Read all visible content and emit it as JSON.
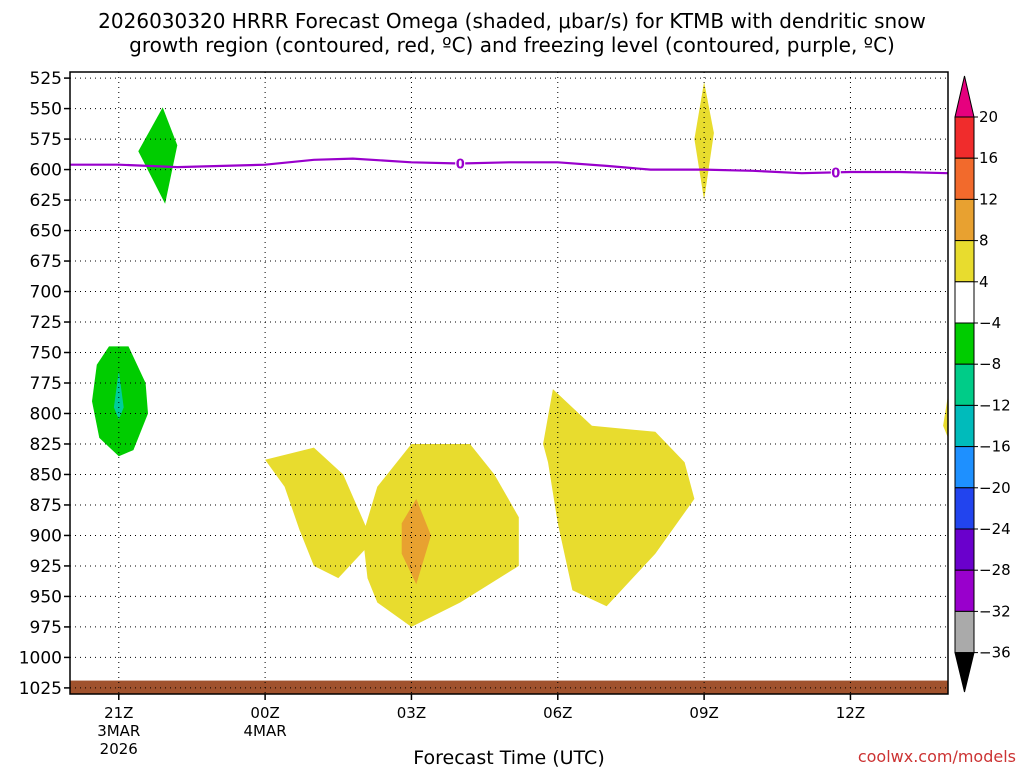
{
  "title_line1": "2026030320 HRRR Forecast Omega (shaded, μbar/s) for KTMB with dendritic snow",
  "title_line2": "growth region (contoured, red, ºC) and freezing level (contoured, purple, ºC)",
  "credit": "coolwx.com/models",
  "chart_data": {
    "type": "area",
    "xlabel": "Forecast Time (UTC)",
    "ylabel": "",
    "x_range_hours": [
      -1,
      17
    ],
    "y_range_hPa": [
      520,
      1030
    ],
    "y_ticks": [
      525,
      550,
      575,
      600,
      625,
      650,
      675,
      700,
      725,
      750,
      775,
      800,
      825,
      850,
      875,
      900,
      925,
      950,
      975,
      1000,
      1025
    ],
    "x_ticks": [
      {
        "hour": 0,
        "label": "21Z",
        "sub1": "3MAR",
        "sub2": "2026"
      },
      {
        "hour": 3,
        "label": "00Z",
        "sub1": "4MAR",
        "sub2": ""
      },
      {
        "hour": 6,
        "label": "03Z",
        "sub1": "",
        "sub2": ""
      },
      {
        "hour": 9,
        "label": "06Z",
        "sub1": "",
        "sub2": ""
      },
      {
        "hour": 12,
        "label": "09Z",
        "sub1": "",
        "sub2": ""
      },
      {
        "hour": 15,
        "label": "12Z",
        "sub1": "",
        "sub2": ""
      }
    ],
    "grid": true,
    "freezing_level": {
      "label": "0",
      "color": "#9900cc",
      "points": [
        [
          -1,
          596
        ],
        [
          0,
          596
        ],
        [
          1.2,
          598
        ],
        [
          3,
          596
        ],
        [
          4,
          592
        ],
        [
          4.8,
          591
        ],
        [
          6,
          594
        ],
        [
          7,
          595
        ],
        [
          8,
          594
        ],
        [
          9,
          594
        ],
        [
          10,
          597
        ],
        [
          10.9,
          600
        ],
        [
          12,
          600
        ],
        [
          13,
          601
        ],
        [
          14,
          603
        ],
        [
          15,
          602
        ],
        [
          16,
          602
        ],
        [
          17,
          603
        ]
      ],
      "label_hours": [
        7,
        14.7
      ]
    },
    "omega_areas": [
      {
        "color": "#00cc00",
        "points": [
          [
            0.9,
            549
          ],
          [
            1.2,
            580
          ],
          [
            0.95,
            628
          ],
          [
            0.4,
            585
          ]
        ]
      },
      {
        "color": "#00cc00",
        "points": [
          [
            -0.2,
            745
          ],
          [
            0.2,
            745
          ],
          [
            0.55,
            775
          ],
          [
            0.6,
            800
          ],
          [
            0.3,
            830
          ],
          [
            0,
            835
          ],
          [
            -0.4,
            820
          ],
          [
            -0.55,
            790
          ],
          [
            -0.45,
            760
          ]
        ]
      },
      {
        "color": "#00cc99",
        "points": [
          [
            0,
            765
          ],
          [
            0.1,
            795
          ],
          [
            0,
            805
          ],
          [
            -0.1,
            795
          ]
        ]
      },
      {
        "color": "#e8dc2e",
        "points": [
          [
            3,
            838
          ],
          [
            4,
            828
          ],
          [
            4.6,
            850
          ],
          [
            5.2,
            905
          ],
          [
            4.5,
            935
          ],
          [
            4,
            925
          ],
          [
            3.7,
            895
          ],
          [
            3.4,
            860
          ]
        ]
      },
      {
        "color": "#e8dc2e",
        "points": [
          [
            6,
            825
          ],
          [
            7.2,
            825
          ],
          [
            7.7,
            850
          ],
          [
            8.2,
            885
          ],
          [
            8.2,
            925
          ],
          [
            7,
            955
          ],
          [
            6,
            975
          ],
          [
            5.3,
            955
          ],
          [
            5.1,
            935
          ],
          [
            5,
            900
          ],
          [
            5.3,
            860
          ]
        ]
      },
      {
        "color": "#e8a130",
        "points": [
          [
            6.1,
            870
          ],
          [
            6.4,
            900
          ],
          [
            6.1,
            940
          ],
          [
            5.8,
            915
          ],
          [
            5.8,
            890
          ]
        ]
      },
      {
        "color": "#e8dc2e",
        "points": [
          [
            8.9,
            780
          ],
          [
            9.7,
            810
          ],
          [
            11,
            815
          ],
          [
            11.6,
            840
          ],
          [
            11.8,
            870
          ],
          [
            11,
            915
          ],
          [
            10,
            958
          ],
          [
            9.3,
            945
          ],
          [
            9,
            890
          ],
          [
            8.8,
            840
          ],
          [
            8.7,
            825
          ]
        ]
      },
      {
        "color": "#e8dc2e",
        "points": [
          [
            12,
            528
          ],
          [
            12.2,
            570
          ],
          [
            12,
            625
          ],
          [
            11.8,
            575
          ]
        ]
      },
      {
        "color": "#e8dc2e",
        "points": [
          [
            17,
            785
          ],
          [
            16.9,
            810
          ],
          [
            17,
            820
          ]
        ]
      }
    ],
    "terrain": {
      "color": "#a0522d",
      "top_hPa": 1019
    },
    "colorbar": {
      "labels": [
        "20",
        "16",
        "12",
        "8",
        "4",
        "−4",
        "−8",
        "−12",
        "−16",
        "−20",
        "−24",
        "−28",
        "−32",
        "−36"
      ],
      "colors": [
        "#f02c2c",
        "#f26a2c",
        "#e8a130",
        "#e8dc2e",
        "#ffffff",
        "#00cc00",
        "#00cc88",
        "#00bbbb",
        "#1e90ff",
        "#2244ee",
        "#6a00cc",
        "#9900cc",
        "#aaaaaa"
      ],
      "top_arrow_color": "#e6007e",
      "bottom_arrow_color": "#000000"
    }
  }
}
